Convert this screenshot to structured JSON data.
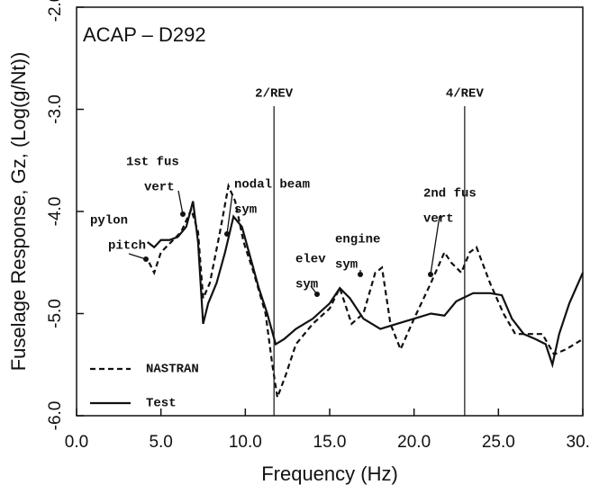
{
  "chart_data": {
    "type": "line",
    "title": "ACAP – D292",
    "x_label": "Frequency (Hz)",
    "y_label": "Fuselage Response, Gz, (Log(g/Nt))",
    "xlim": [
      0,
      30
    ],
    "ylim": [
      -6,
      -2
    ],
    "xticks": [
      {
        "value": 0,
        "label": "0.0"
      },
      {
        "value": 5,
        "label": "5.0"
      },
      {
        "value": 10,
        "label": "10.0"
      },
      {
        "value": 15,
        "label": "15.0"
      },
      {
        "value": 20,
        "label": "20.0"
      },
      {
        "value": 25,
        "label": "25.0"
      },
      {
        "value": 30,
        "label": "30.0"
      }
    ],
    "yticks": [
      {
        "value": -6,
        "label": "-6.0"
      },
      {
        "value": -5,
        "label": "-5.0"
      },
      {
        "value": -4,
        "label": "-4.0"
      },
      {
        "value": -3,
        "label": "-3.0"
      },
      {
        "value": -2,
        "label": "-2.0"
      }
    ],
    "legend": "lower left",
    "reference_lines": [
      {
        "x": 11.7,
        "label": "2/REV"
      },
      {
        "x": 23,
        "label": "4/REV"
      }
    ],
    "annotations": [
      {
        "lines": [
          "1st fus",
          "vert"
        ]
      },
      {
        "lines": [
          "pylon",
          "pitch"
        ]
      },
      {
        "lines": [
          "nodal beam",
          "sym"
        ]
      },
      {
        "lines": [
          "elev",
          "sym"
        ]
      },
      {
        "lines": [
          "engine",
          "sym"
        ]
      },
      {
        "lines": [
          "2nd fus",
          "vert"
        ]
      }
    ],
    "series": [
      {
        "name": "NASTRAN",
        "color": "#111111",
        "dash": true,
        "x": [
          4.3,
          4.6,
          5.0,
          5.6,
          6.2,
          6.8,
          7.2,
          7.5,
          7.9,
          8.5,
          9.0,
          9.4,
          9.9,
          10.5,
          11.2,
          11.6,
          11.9,
          12.4,
          13,
          14,
          15,
          15.6,
          16.3,
          17,
          17.7,
          18.1,
          18.6,
          19.2,
          20,
          21,
          21.8,
          22.2,
          22.8,
          23.3,
          23.7,
          24.5,
          25.3,
          26,
          27,
          27.6,
          28.3,
          29,
          30
        ],
        "values": [
          -4.5,
          -4.6,
          -4.4,
          -4.3,
          -4.2,
          -3.98,
          -4.2,
          -4.85,
          -4.7,
          -4.2,
          -3.75,
          -3.9,
          -4.3,
          -4.6,
          -5.0,
          -5.5,
          -5.82,
          -5.6,
          -5.3,
          -5.1,
          -4.95,
          -4.75,
          -5.1,
          -5.0,
          -4.6,
          -4.55,
          -5.1,
          -5.35,
          -5.05,
          -4.7,
          -4.4,
          -4.5,
          -4.6,
          -4.4,
          -4.35,
          -4.7,
          -5.0,
          -5.2,
          -5.2,
          -5.2,
          -5.4,
          -5.35,
          -5.25
        ]
      },
      {
        "name": "Test",
        "color": "#111111",
        "dash": false,
        "x": [
          4.2,
          4.6,
          5.0,
          5.5,
          6.0,
          6.5,
          6.9,
          7.2,
          7.5,
          7.8,
          8.3,
          8.8,
          9.3,
          9.8,
          10.3,
          10.8,
          11.3,
          11.8,
          12.3,
          13,
          14,
          15,
          15.6,
          16.2,
          17,
          18,
          19,
          20,
          21,
          21.8,
          22.5,
          23.5,
          24.5,
          25.2,
          25.8,
          26.5,
          27.2,
          27.8,
          28.2,
          28.6,
          29.2,
          30
        ],
        "values": [
          -4.3,
          -4.35,
          -4.28,
          -4.28,
          -4.25,
          -4.15,
          -3.9,
          -4.3,
          -5.1,
          -4.9,
          -4.7,
          -4.4,
          -4.05,
          -4.15,
          -4.45,
          -4.75,
          -5.0,
          -5.3,
          -5.25,
          -5.15,
          -5.05,
          -4.9,
          -4.75,
          -4.85,
          -5.05,
          -5.15,
          -5.1,
          -5.05,
          -5.0,
          -5.02,
          -4.88,
          -4.8,
          -4.8,
          -4.82,
          -5.05,
          -5.2,
          -5.25,
          -5.3,
          -5.5,
          -5.2,
          -4.9,
          -4.6
        ]
      }
    ]
  }
}
